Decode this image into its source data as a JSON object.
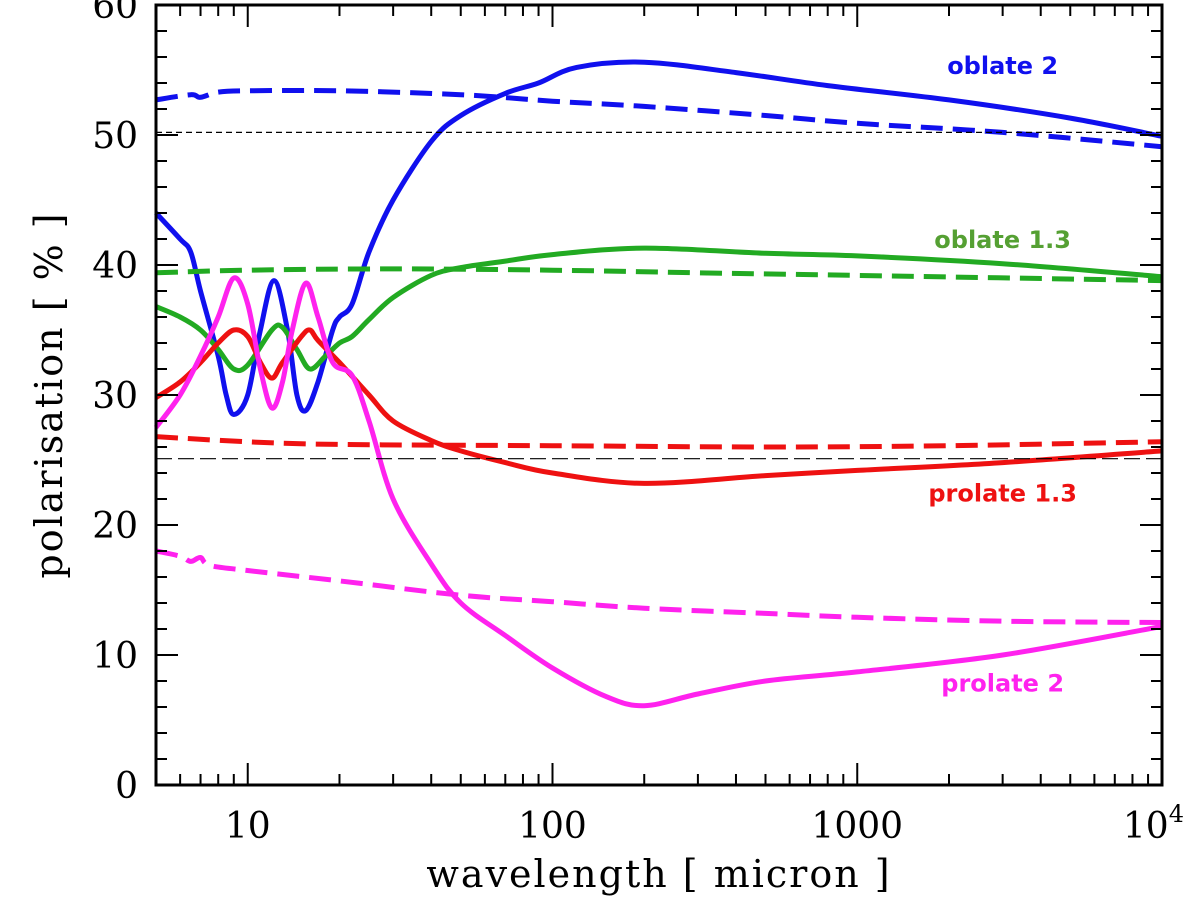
{
  "chart_data": {
    "type": "line",
    "xscale": "log",
    "xlim": [
      5,
      10000
    ],
    "ylim": [
      0,
      60
    ],
    "xlabel": "wavelength [ micron ]",
    "ylabel": "polarisation [ % ]",
    "x_ticks": [
      {
        "value": 10,
        "label": "10"
      },
      {
        "value": 100,
        "label": "100"
      },
      {
        "value": 1000,
        "label": "1000"
      },
      {
        "value": 10000,
        "label": "10",
        "sup": "4"
      }
    ],
    "y_ticks": [
      {
        "value": 0,
        "label": "0"
      },
      {
        "value": 10,
        "label": "10"
      },
      {
        "value": 20,
        "label": "20"
      },
      {
        "value": 30,
        "label": "30"
      },
      {
        "value": 40,
        "label": "40"
      },
      {
        "value": 50,
        "label": "50"
      },
      {
        "value": 60,
        "label": "60"
      }
    ],
    "reference_lines": [
      {
        "y": 50.2,
        "style": "short-dash"
      },
      {
        "y": 25.1,
        "style": "long-dash"
      }
    ],
    "series": [
      {
        "name": "oblate 2",
        "color": "#1010ee",
        "dash": "solid",
        "points": [
          [
            5,
            44
          ],
          [
            6,
            42
          ],
          [
            6.5,
            41
          ],
          [
            7,
            38
          ],
          [
            8,
            33
          ],
          [
            8.5,
            30
          ],
          [
            9,
            28.5
          ],
          [
            10,
            30
          ],
          [
            11,
            35
          ],
          [
            12.2,
            38.8
          ],
          [
            13.5,
            35
          ],
          [
            14.5,
            30
          ],
          [
            15.5,
            28.8
          ],
          [
            17,
            31
          ],
          [
            19,
            35
          ],
          [
            20,
            36
          ],
          [
            22,
            37
          ],
          [
            25,
            41
          ],
          [
            30,
            45
          ],
          [
            40,
            49.5
          ],
          [
            50,
            51.5
          ],
          [
            70,
            53.2
          ],
          [
            90,
            54
          ],
          [
            120,
            55.2
          ],
          [
            200,
            55.6
          ],
          [
            400,
            54.8
          ],
          [
            800,
            53.8
          ],
          [
            2000,
            52.7
          ],
          [
            5000,
            51.3
          ],
          [
            10000,
            49.9
          ]
        ]
      },
      {
        "name": "oblate 2 (dashed)",
        "color": "#1010ee",
        "dash": "dashed",
        "points": [
          [
            5,
            52.7
          ],
          [
            6.5,
            53.1
          ],
          [
            7,
            52.9
          ],
          [
            8,
            53.3
          ],
          [
            10,
            53.4
          ],
          [
            20,
            53.4
          ],
          [
            50,
            53.1
          ],
          [
            100,
            52.6
          ],
          [
            200,
            52.2
          ],
          [
            500,
            51.5
          ],
          [
            1000,
            50.9
          ],
          [
            3000,
            50.2
          ],
          [
            10000,
            49.1
          ]
        ]
      },
      {
        "name": "oblate 1.3",
        "color": "#22aa22",
        "dash": "solid",
        "points": [
          [
            5,
            36.8
          ],
          [
            6,
            36
          ],
          [
            7,
            35
          ],
          [
            8,
            33.5
          ],
          [
            9,
            32
          ],
          [
            10,
            32.3
          ],
          [
            12,
            35
          ],
          [
            13,
            35.2
          ],
          [
            14.5,
            33.5
          ],
          [
            16,
            32
          ],
          [
            18,
            33
          ],
          [
            20,
            34
          ],
          [
            22,
            34.5
          ],
          [
            25,
            35.8
          ],
          [
            30,
            37.5
          ],
          [
            40,
            39.2
          ],
          [
            50,
            39.8
          ],
          [
            70,
            40.3
          ],
          [
            100,
            40.8
          ],
          [
            200,
            41.3
          ],
          [
            500,
            40.9
          ],
          [
            1000,
            40.7
          ],
          [
            3000,
            40.1
          ],
          [
            10000,
            39.1
          ]
        ]
      },
      {
        "name": "oblate 1.3 (dashed)",
        "color": "#22aa22",
        "dash": "dashed",
        "points": [
          [
            5,
            39.4
          ],
          [
            10,
            39.6
          ],
          [
            30,
            39.7
          ],
          [
            100,
            39.6
          ],
          [
            300,
            39.4
          ],
          [
            1000,
            39.2
          ],
          [
            10000,
            38.8
          ]
        ]
      },
      {
        "name": "prolate 1.3",
        "color": "#ee1111",
        "dash": "solid",
        "points": [
          [
            5,
            29.8
          ],
          [
            6,
            31
          ],
          [
            7,
            32.5
          ],
          [
            8,
            34
          ],
          [
            9,
            35
          ],
          [
            10,
            34.5
          ],
          [
            11,
            32.5
          ],
          [
            12,
            31.3
          ],
          [
            13,
            32.5
          ],
          [
            15,
            34.5
          ],
          [
            16,
            35
          ],
          [
            17,
            34.2
          ],
          [
            20,
            32.5
          ],
          [
            25,
            30
          ],
          [
            30,
            28
          ],
          [
            40,
            26.5
          ],
          [
            50,
            25.7
          ],
          [
            70,
            24.8
          ],
          [
            100,
            24
          ],
          [
            200,
            23.2
          ],
          [
            500,
            23.8
          ],
          [
            1000,
            24.2
          ],
          [
            3000,
            24.8
          ],
          [
            10000,
            25.7
          ]
        ]
      },
      {
        "name": "prolate 1.3 (dashed)",
        "color": "#ee1111",
        "dash": "dashed",
        "points": [
          [
            5,
            26.8
          ],
          [
            10,
            26.4
          ],
          [
            20,
            26.2
          ],
          [
            100,
            26.1
          ],
          [
            500,
            26
          ],
          [
            2000,
            26.1
          ],
          [
            10000,
            26.4
          ]
        ]
      },
      {
        "name": "prolate 2",
        "color": "#ff22ee",
        "dash": "solid",
        "points": [
          [
            5,
            27.5
          ],
          [
            6,
            30
          ],
          [
            7,
            33
          ],
          [
            8,
            36
          ],
          [
            9,
            39
          ],
          [
            10,
            37
          ],
          [
            11,
            32
          ],
          [
            12,
            29
          ],
          [
            13,
            31
          ],
          [
            14,
            35
          ],
          [
            15.5,
            38.6
          ],
          [
            17,
            36
          ],
          [
            19,
            32.5
          ],
          [
            22,
            31.5
          ],
          [
            25,
            28
          ],
          [
            30,
            22
          ],
          [
            40,
            17
          ],
          [
            50,
            14
          ],
          [
            70,
            11.5
          ],
          [
            100,
            9
          ],
          [
            150,
            6.8
          ],
          [
            200,
            6.1
          ],
          [
            300,
            7
          ],
          [
            500,
            8
          ],
          [
            1000,
            8.7
          ],
          [
            3000,
            10
          ],
          [
            10000,
            12.2
          ]
        ]
      },
      {
        "name": "prolate 2 (dashed)",
        "color": "#ff22ee",
        "dash": "dashed",
        "points": [
          [
            5,
            18
          ],
          [
            6,
            17.6
          ],
          [
            6.5,
            17.2
          ],
          [
            7,
            17.5
          ],
          [
            7.5,
            16.9
          ],
          [
            10,
            16.5
          ],
          [
            20,
            15.7
          ],
          [
            50,
            14.6
          ],
          [
            100,
            14.1
          ],
          [
            200,
            13.6
          ],
          [
            500,
            13.2
          ],
          [
            1000,
            12.9
          ],
          [
            3000,
            12.6
          ],
          [
            10000,
            12.5
          ]
        ]
      }
    ],
    "annotations": [
      {
        "text": "oblate 2",
        "color": "#1010ee",
        "x": 3000,
        "y": 54.7
      },
      {
        "text": "oblate 1.3",
        "color": "#55a033",
        "x": 3000,
        "y": 41.3
      },
      {
        "text": "prolate 1.3",
        "color": "#ee1111",
        "x": 3000,
        "y": 21.8
      },
      {
        "text": "prolate 2",
        "color": "#ff22ee",
        "x": 3000,
        "y": 7.2
      }
    ]
  }
}
